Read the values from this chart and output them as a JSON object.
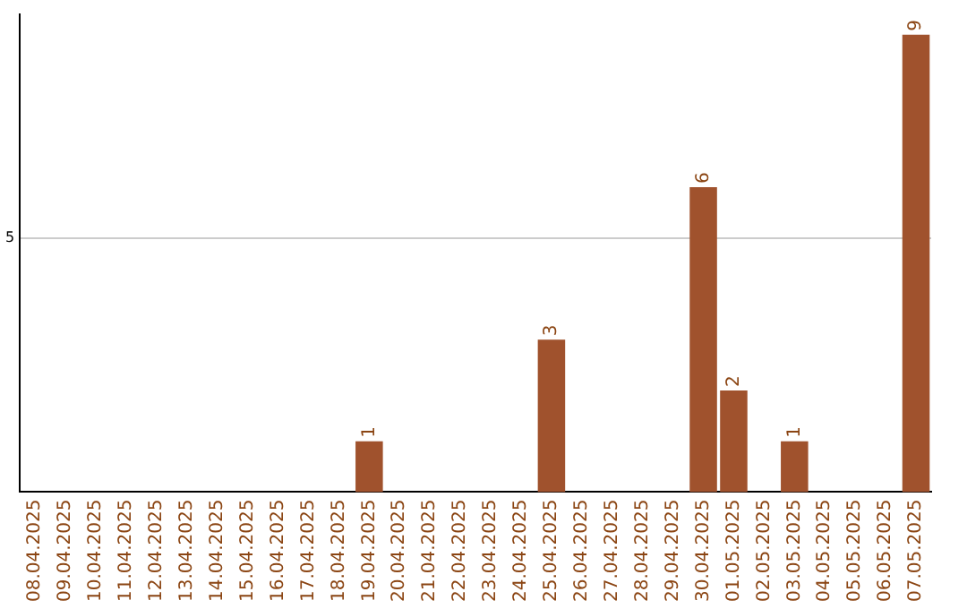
{
  "chart_data": {
    "type": "bar",
    "categories": [
      "08.04.2025",
      "09.04.2025",
      "10.04.2025",
      "11.04.2025",
      "12.04.2025",
      "13.04.2025",
      "14.04.2025",
      "15.04.2025",
      "16.04.2025",
      "17.04.2025",
      "18.04.2025",
      "19.04.2025",
      "20.04.2025",
      "21.04.2025",
      "22.04.2025",
      "23.04.2025",
      "24.04.2025",
      "25.04.2025",
      "26.04.2025",
      "27.04.2025",
      "28.04.2025",
      "29.04.2025",
      "30.04.2025",
      "01.05.2025",
      "02.05.2025",
      "03.05.2025",
      "04.05.2025",
      "05.05.2025",
      "06.05.2025",
      "07.05.2025"
    ],
    "values": [
      0,
      0,
      0,
      0,
      0,
      0,
      0,
      0,
      0,
      0,
      0,
      1,
      0,
      0,
      0,
      0,
      0,
      3,
      0,
      0,
      0,
      0,
      6,
      2,
      0,
      1,
      0,
      0,
      0,
      9
    ],
    "value_labels": [
      null,
      null,
      null,
      null,
      null,
      null,
      null,
      null,
      null,
      null,
      null,
      "1",
      null,
      null,
      null,
      null,
      null,
      "3",
      null,
      null,
      null,
      null,
      "6",
      "2",
      null,
      "1",
      null,
      null,
      null,
      "9"
    ],
    "color": "#a0522d",
    "ylim": [
      0,
      9.4
    ],
    "yticks": [
      5
    ],
    "grid": "y",
    "legend": false
  }
}
